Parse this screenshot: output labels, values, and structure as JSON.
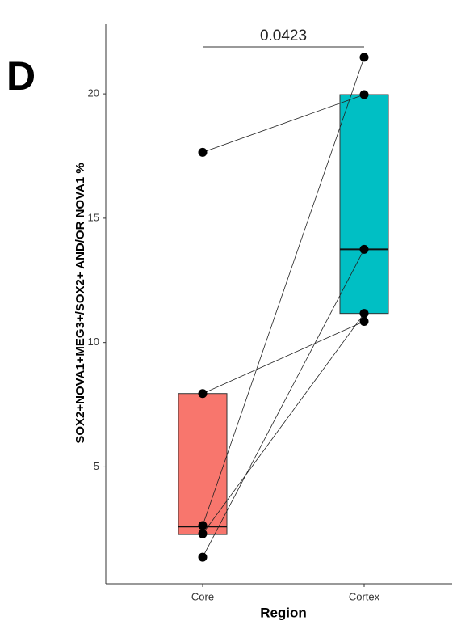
{
  "chart_data": {
    "type": "box",
    "panel_label": "D",
    "annotation": "0.0423",
    "x_label": "Region",
    "y_label": "SOX2+NOVA1+MEG3+/SOX2+ AND/OR NOVA1 %",
    "categories": [
      "Core",
      "Cortex"
    ],
    "series": [
      {
        "name": "Core",
        "color": "#f8766d",
        "values": [
          17.65,
          7.95,
          2.64,
          2.31,
          1.37
        ],
        "box": {
          "q1": 2.28,
          "median": 2.6,
          "q3": 7.95
        }
      },
      {
        "name": "Cortex",
        "color": "#00bfc4",
        "values": [
          19.97,
          10.85,
          21.47,
          11.17,
          13.75
        ],
        "box": {
          "q1": 11.17,
          "median": 13.75,
          "q3": 19.97
        }
      }
    ],
    "ylim": [
      0.3,
      22.8
    ],
    "yticks": [
      5,
      10,
      15,
      20
    ]
  }
}
